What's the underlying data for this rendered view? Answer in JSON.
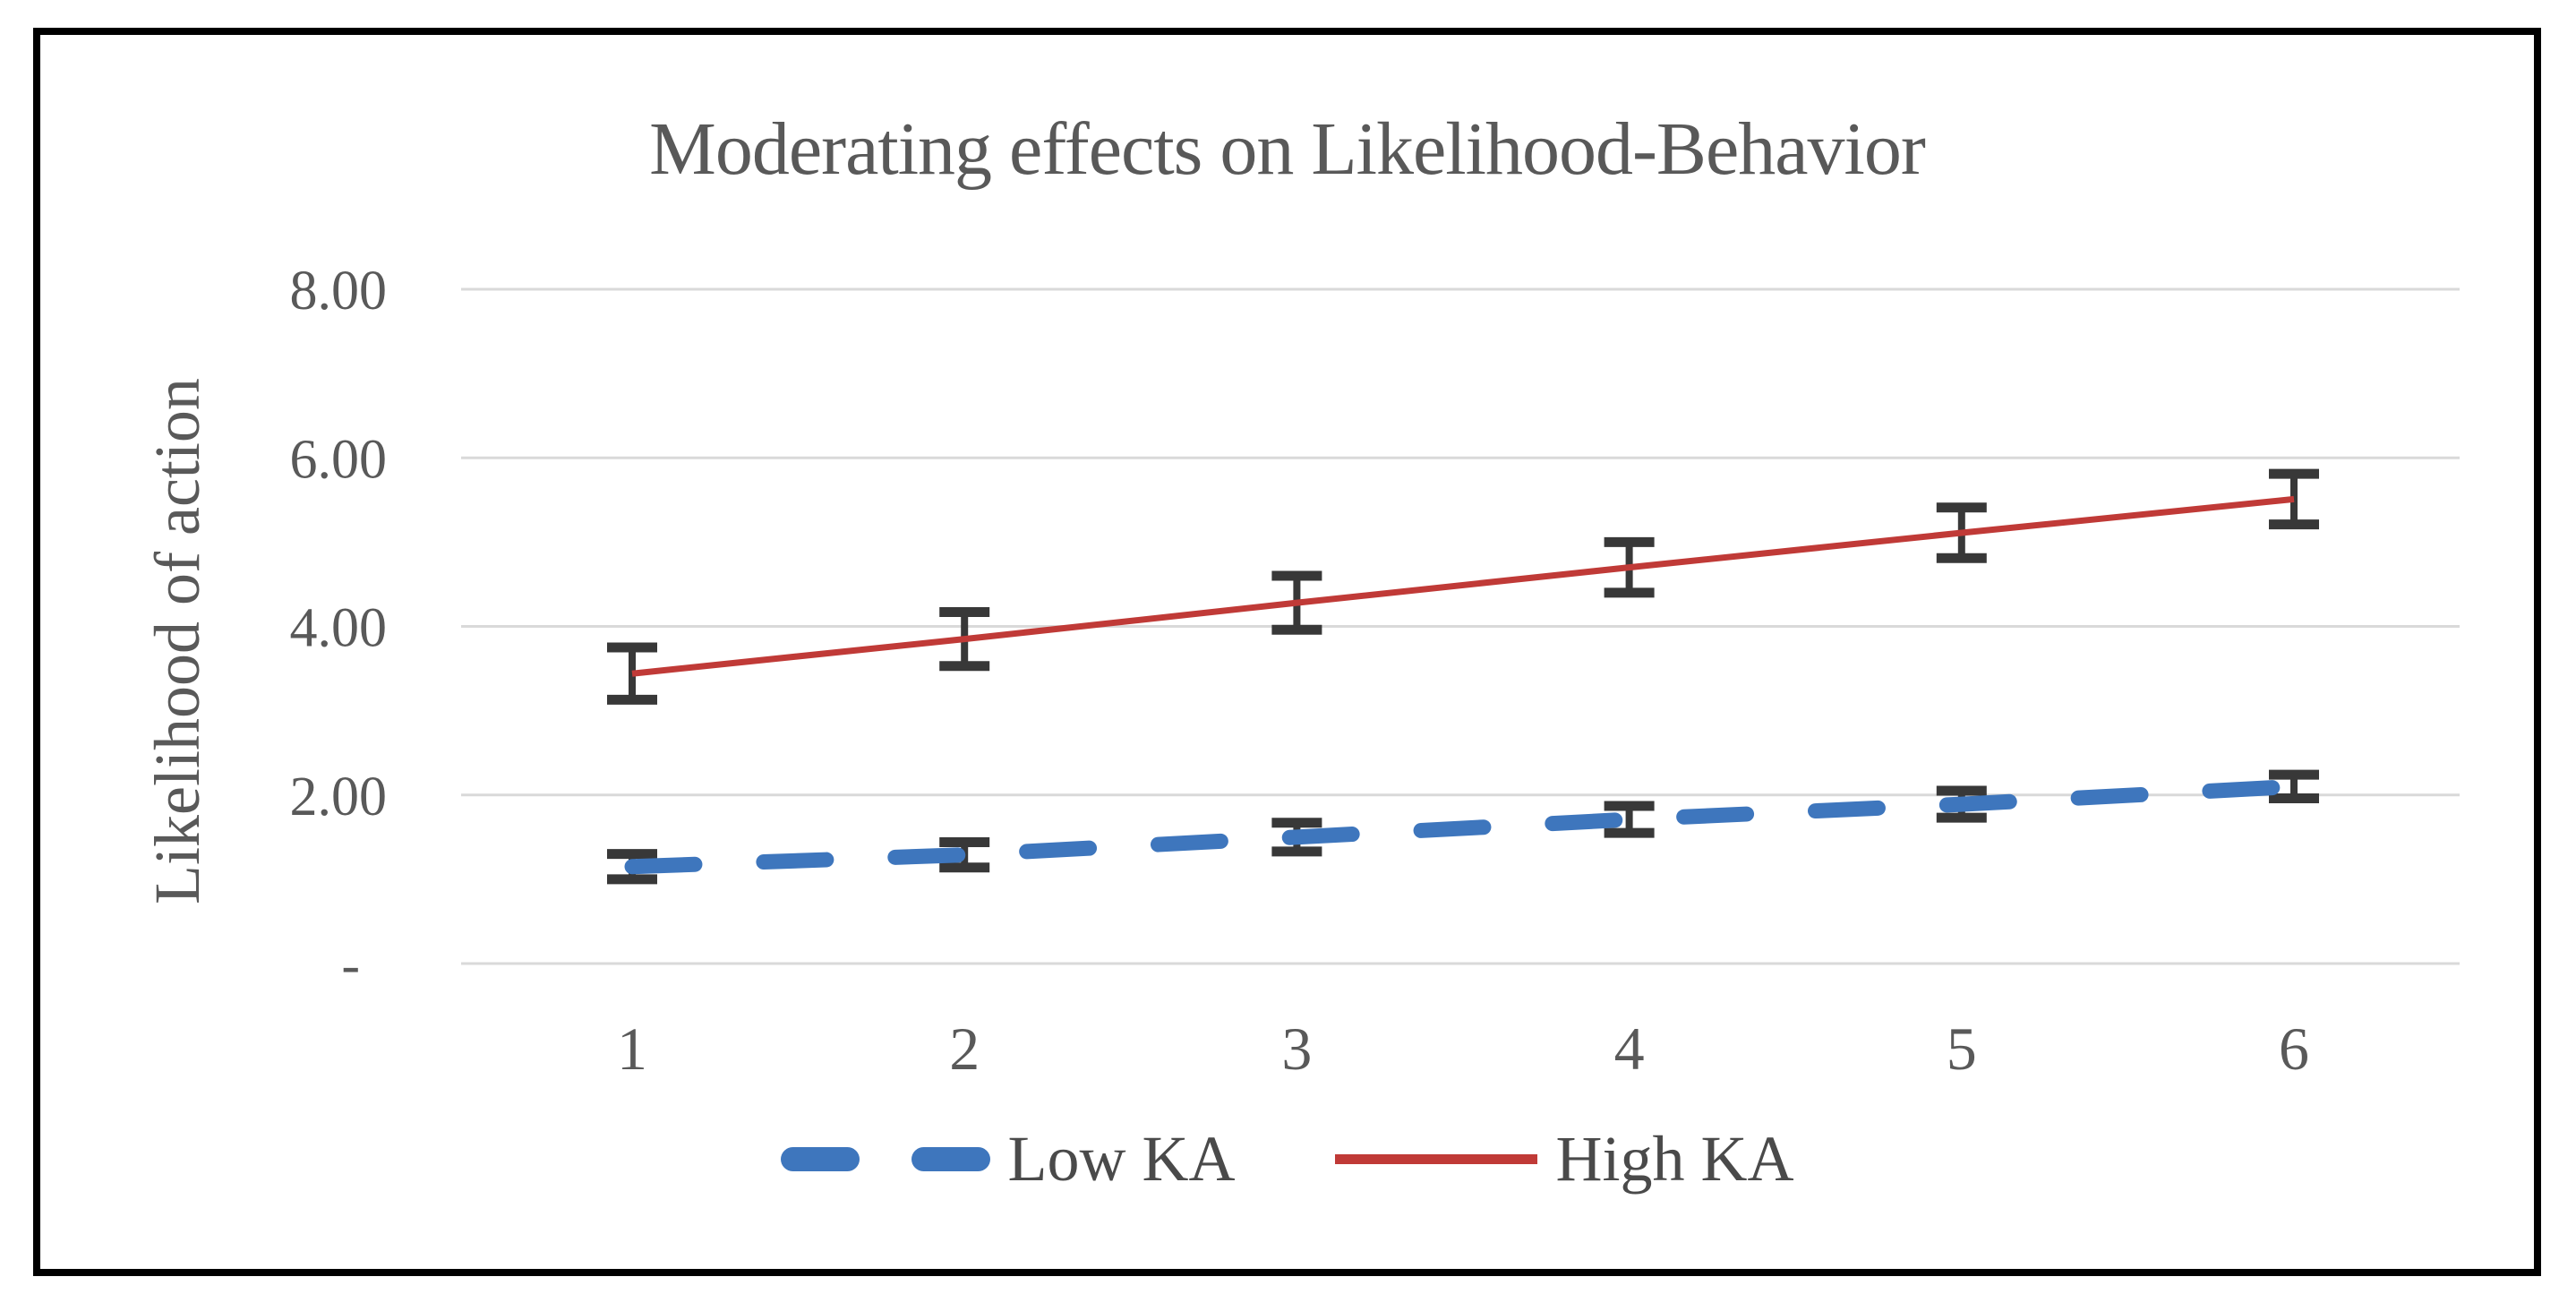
{
  "figure": {
    "background_color": "#FFFFFF",
    "border_color": "#000000"
  },
  "chart_data": {
    "type": "line",
    "title": "Moderating effects on Likelihood-Behavior",
    "xlabel": "",
    "ylabel": "Likelihood of action",
    "x": [
      "1",
      "2",
      "3",
      "4",
      "5",
      "6"
    ],
    "series": [
      {
        "name": "Low KA",
        "values": [
          1.15,
          1.29,
          1.5,
          1.71,
          1.89,
          2.1
        ],
        "errors": [
          0.15,
          0.15,
          0.17,
          0.16,
          0.16,
          0.14
        ],
        "color": "#3E76BD",
        "style": "dashed"
      },
      {
        "name": "High KA",
        "values": [
          3.44,
          3.85,
          4.28,
          4.7,
          5.11,
          5.51
        ],
        "errors": [
          0.31,
          0.32,
          0.32,
          0.3,
          0.3,
          0.3
        ],
        "color": "#C03A37",
        "style": "solid"
      }
    ],
    "ylim": [
      0,
      8
    ],
    "y_ticks": [
      {
        "value": 8,
        "label": "8.00"
      },
      {
        "value": 6,
        "label": "6.00"
      },
      {
        "value": 4,
        "label": "4.00"
      },
      {
        "value": 2,
        "label": "2.00"
      },
      {
        "value": 0,
        "label": "-"
      }
    ],
    "grid": true,
    "legend_position": "bottom",
    "gridline_color": "#D9D9D9",
    "error_bar_color": "#383838",
    "text_color": "#595959"
  }
}
